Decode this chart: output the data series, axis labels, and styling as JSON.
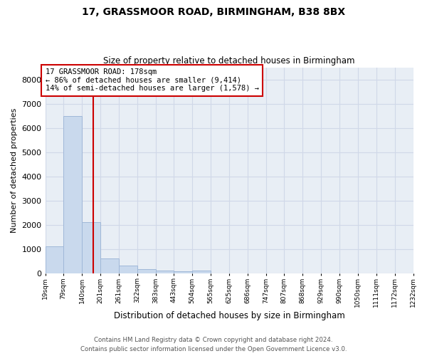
{
  "title_line1": "17, GRASSMOOR ROAD, BIRMINGHAM, B38 8BX",
  "title_line2": "Size of property relative to detached houses in Birmingham",
  "xlabel": "Distribution of detached houses by size in Birmingham",
  "ylabel": "Number of detached properties",
  "property_size_sqm": 178,
  "annotation_line1": "17 GRASSMOOR ROAD: 178sqm",
  "annotation_line2": "← 86% of detached houses are smaller (9,414)",
  "annotation_line3": "14% of semi-detached houses are larger (1,578) →",
  "bar_color": "#c9d9ed",
  "bar_edge_color": "#a0b8d8",
  "vline_color": "#cc0000",
  "grid_color": "#d0d8e8",
  "background_color": "#e8eef5",
  "ylim": [
    0,
    8500
  ],
  "bin_edges": [
    19,
    79,
    140,
    201,
    261,
    322,
    383,
    443,
    504,
    565,
    625,
    686,
    747,
    807,
    868,
    929,
    990,
    1050,
    1111,
    1172,
    1232
  ],
  "bin_labels": [
    "19sqm",
    "79sqm",
    "140sqm",
    "201sqm",
    "261sqm",
    "322sqm",
    "383sqm",
    "443sqm",
    "504sqm",
    "565sqm",
    "625sqm",
    "686sqm",
    "747sqm",
    "807sqm",
    "868sqm",
    "929sqm",
    "990sqm",
    "1050sqm",
    "1111sqm",
    "1172sqm",
    "1232sqm"
  ],
  "bar_heights": [
    1100,
    6500,
    2100,
    620,
    330,
    160,
    100,
    70,
    100,
    0,
    0,
    0,
    0,
    0,
    0,
    0,
    0,
    0,
    0,
    0
  ],
  "footnote1": "Contains HM Land Registry data © Crown copyright and database right 2024.",
  "footnote2": "Contains public sector information licensed under the Open Government Licence v3.0."
}
